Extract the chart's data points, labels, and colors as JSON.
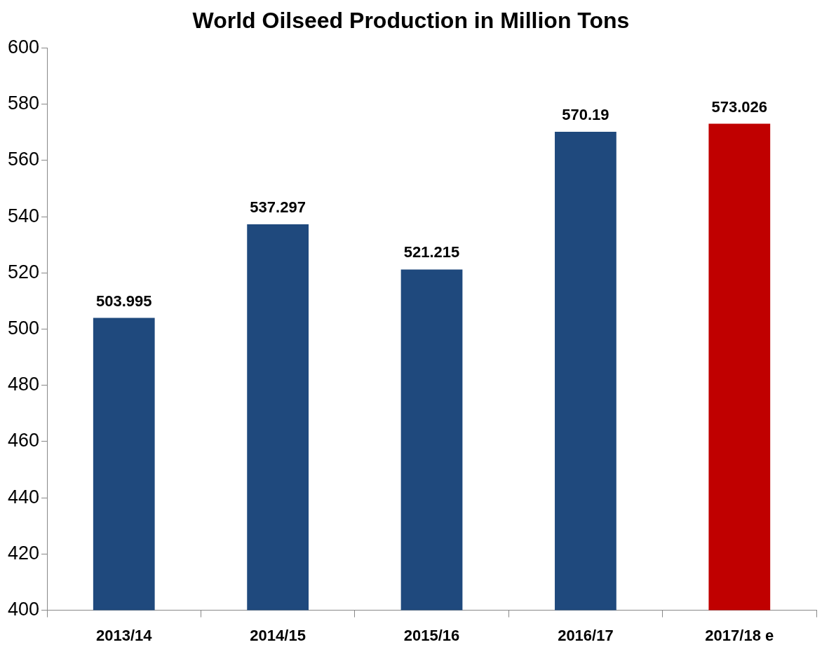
{
  "chart_data": {
    "type": "bar",
    "title": "World Oilseed Production in Million Tons",
    "categories": [
      "2013/14",
      "2014/15",
      "2015/16",
      "2016/17",
      "2017/18 e"
    ],
    "values": [
      503.995,
      537.297,
      521.215,
      570.19,
      573.026
    ],
    "colors": [
      "#1f497d",
      "#1f497d",
      "#1f497d",
      "#1f497d",
      "#c00000"
    ],
    "ylim": [
      400,
      600
    ],
    "yticks": [
      400,
      420,
      440,
      460,
      480,
      500,
      520,
      540,
      560,
      580,
      600
    ],
    "data_labels": true
  }
}
